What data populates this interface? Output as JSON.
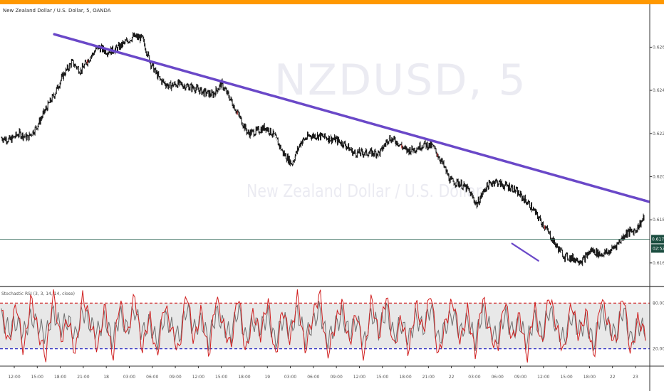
{
  "header": {
    "chart_title": "New Zealand Dollar / U.S. Dollar, 5, OANDA"
  },
  "watermark": {
    "symbol": "NZDUSD, 5",
    "name": "New Zealand Dollar / U.S. Dollar"
  },
  "indicator": {
    "label": "Stochastic RSI (3, 3, 14, 14, close)"
  },
  "colors": {
    "top_bar": "#ff9800",
    "candles": "#1a1a1a",
    "trendline": "#6a48c8",
    "stoch_k": "#d02020",
    "stoch_d": "#707070",
    "band_fill": "#e8e8e8",
    "band_upper": "#d02020",
    "band_lower": "#2020c0",
    "price_line": "#3a6f5f",
    "price_tag": "#1b4d40",
    "axis": "#333333"
  },
  "price_axis": {
    "ticks": [
      "0.62600",
      "0.62400",
      "0.62200",
      "0.62000",
      "0.61800",
      "0.61600"
    ],
    "current_price": "0.61710",
    "countdown": "02:52"
  },
  "indicator_axis": {
    "ticks": [
      "80.00000",
      "20.00000"
    ],
    "upper": 80,
    "lower": 20
  },
  "time_axis": {
    "ticks": [
      "12:00",
      "15:00",
      "18:00",
      "21:00",
      "18",
      "03:00",
      "06:00",
      "09:00",
      "12:00",
      "15:00",
      "18:00",
      "19",
      "03:00",
      "06:00",
      "09:00",
      "12:00",
      "15:00",
      "18:00",
      "21:00",
      "22",
      "03:00",
      "06:00",
      "09:00",
      "12:00",
      "15:00",
      "18:00",
      "22",
      "23"
    ]
  },
  "chart_data": {
    "type": "line",
    "series": [
      {
        "values": [
          0.6218,
          0.6217,
          0.622,
          0.6218,
          0.6223,
          0.6231,
          0.6238,
          0.6247,
          0.6253,
          0.6249,
          0.6255,
          0.626,
          0.6258,
          0.6259,
          0.6262,
          0.6265,
          0.6264,
          0.6252,
          0.6245,
          0.6242,
          0.6243,
          0.6242,
          0.6241,
          0.6239,
          0.6238,
          0.6243,
          0.6236,
          0.6228,
          0.622,
          0.6221,
          0.6223,
          0.6219,
          0.6211,
          0.6206,
          0.6216,
          0.6219,
          0.6219,
          0.6218,
          0.6217,
          0.6215,
          0.6211,
          0.6211,
          0.6211,
          0.6211,
          0.6218,
          0.6216,
          0.6212,
          0.6213,
          0.6215,
          0.6214,
          0.6207,
          0.6198,
          0.6197,
          0.6194,
          0.6187,
          0.6195,
          0.6198,
          0.6196,
          0.6195,
          0.6191,
          0.6187,
          0.6181,
          0.6175,
          0.6168,
          0.6163,
          0.6162,
          0.6161,
          0.6166,
          0.6164,
          0.6165,
          0.6169,
          0.6174,
          0.6175,
          0.6181
        ]
      }
    ],
    "trendlines": [
      {
        "from": [
          6,
          0.6266
        ],
        "to": [
          73,
          0.6189
        ]
      },
      {
        "from": [
          58,
          0.6169
        ],
        "to": [
          61,
          0.6161
        ]
      }
    ],
    "indicator_series": [
      {
        "values": [
          70,
          25,
          82,
          15,
          88,
          40,
          10,
          95,
          30,
          60,
          12,
          90,
          55,
          20,
          78,
          5,
          85,
          35,
          92,
          18,
          65,
          8,
          80,
          45,
          15,
          98,
          28,
          72,
          10,
          88,
          50,
          22,
          95,
          12,
          68,
          38,
          85,
          6,
          75,
          30,
          90,
          18,
          60,
          95,
          10,
          48,
          82,
          25,
          70,
          5,
          88,
          35,
          92,
          20,
          62,
          15,
          80,
          42,
          96,
          8,
          55,
          85,
          28,
          72,
          12,
          90,
          40,
          18,
          86,
          30,
          65,
          8,
          78,
          22,
          93,
          48,
          15,
          82,
          35,
          70,
          6,
          88,
          52,
          25,
          95,
          12,
          60,
          38
        ]
      },
      {
        "values": [
          60,
          45,
          55,
          40,
          62,
          50,
          38,
          68,
          48,
          58,
          35,
          70,
          52,
          42,
          60,
          30,
          66,
          45,
          72,
          40,
          55,
          28,
          62,
          48,
          35,
          75,
          44,
          58,
          30,
          68,
          50,
          38,
          74,
          32,
          56,
          46,
          65,
          28,
          60,
          42,
          70,
          34,
          52,
          72,
          30,
          48,
          64,
          40,
          58,
          26,
          68,
          44,
          72,
          36,
          54,
          32,
          62,
          46,
          76,
          30,
          50,
          66,
          40,
          58,
          30,
          70,
          46,
          34,
          66,
          42,
          55,
          28,
          62,
          38,
          72,
          48,
          32,
          64,
          44,
          56,
          26,
          68,
          50,
          38,
          74,
          30,
          52,
          44
        ]
      }
    ]
  }
}
